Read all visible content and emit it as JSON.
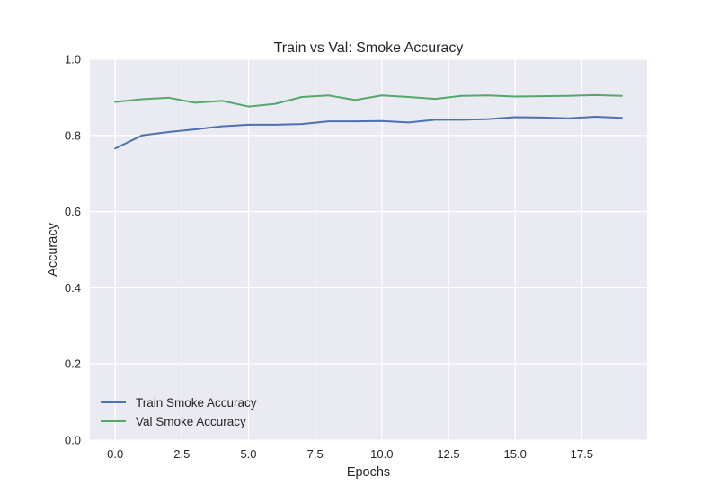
{
  "chart_data": {
    "type": "line",
    "title": "Train vs Val: Smoke Accuracy",
    "xlabel": "Epochs",
    "ylabel": "Accuracy",
    "xlim": [
      -0.95,
      19.95
    ],
    "ylim": [
      0.0,
      1.0
    ],
    "xticks": [
      0.0,
      2.5,
      5.0,
      7.5,
      10.0,
      12.5,
      15.0,
      17.5
    ],
    "xtick_labels": [
      "0.0",
      "2.5",
      "5.0",
      "7.5",
      "10.0",
      "12.5",
      "15.0",
      "17.5"
    ],
    "yticks": [
      0.0,
      0.2,
      0.4,
      0.6,
      0.8,
      1.0
    ],
    "ytick_labels": [
      "0.0",
      "0.2",
      "0.4",
      "0.6",
      "0.8",
      "1.0"
    ],
    "grid": true,
    "legend_position": "lower-left",
    "x": [
      0,
      1,
      2,
      3,
      4,
      5,
      6,
      7,
      8,
      9,
      10,
      11,
      12,
      13,
      14,
      15,
      16,
      17,
      18,
      19
    ],
    "series": [
      {
        "name": "Train Smoke Accuracy",
        "color": "#4c72b0",
        "values": [
          0.766,
          0.8,
          0.809,
          0.816,
          0.824,
          0.828,
          0.828,
          0.83,
          0.837,
          0.837,
          0.838,
          0.834,
          0.841,
          0.841,
          0.843,
          0.848,
          0.847,
          0.845,
          0.849,
          0.846
        ]
      },
      {
        "name": "Val Smoke Accuracy",
        "color": "#55a868",
        "values": [
          0.888,
          0.895,
          0.899,
          0.886,
          0.891,
          0.876,
          0.883,
          0.901,
          0.905,
          0.893,
          0.905,
          0.901,
          0.896,
          0.904,
          0.905,
          0.902,
          0.903,
          0.904,
          0.906,
          0.904
        ]
      }
    ]
  },
  "style": {
    "plot_background": "#eaeaf2",
    "grid_color": "#ffffff"
  }
}
